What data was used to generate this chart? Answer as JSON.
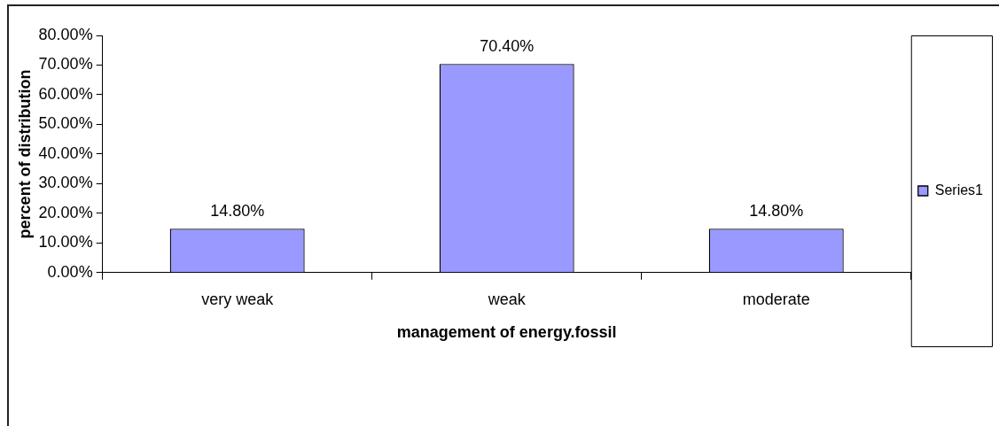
{
  "chart_data": {
    "type": "bar",
    "xlabel": "management of energy.fossil",
    "ylabel": "percent of distribution",
    "categories": [
      "very weak",
      "weak",
      "moderate"
    ],
    "series": [
      {
        "name": "Series1",
        "color": "#9999ff",
        "values": [
          14.8,
          70.4,
          14.8
        ],
        "value_labels": [
          "14.80%",
          "70.40%",
          "14.80%"
        ]
      }
    ],
    "ylim": [
      0,
      80
    ],
    "yticks": [
      {
        "value": 0,
        "label": "0.00%"
      },
      {
        "value": 10,
        "label": "10.00%"
      },
      {
        "value": 20,
        "label": "20.00%"
      },
      {
        "value": 30,
        "label": "30.00%"
      },
      {
        "value": 40,
        "label": "40.00%"
      },
      {
        "value": 50,
        "label": "50.00%"
      },
      {
        "value": 60,
        "label": "60.00%"
      },
      {
        "value": 70,
        "label": "70.00%"
      },
      {
        "value": 80,
        "label": "80.00%"
      }
    ],
    "grid": false,
    "legend": "right"
  }
}
